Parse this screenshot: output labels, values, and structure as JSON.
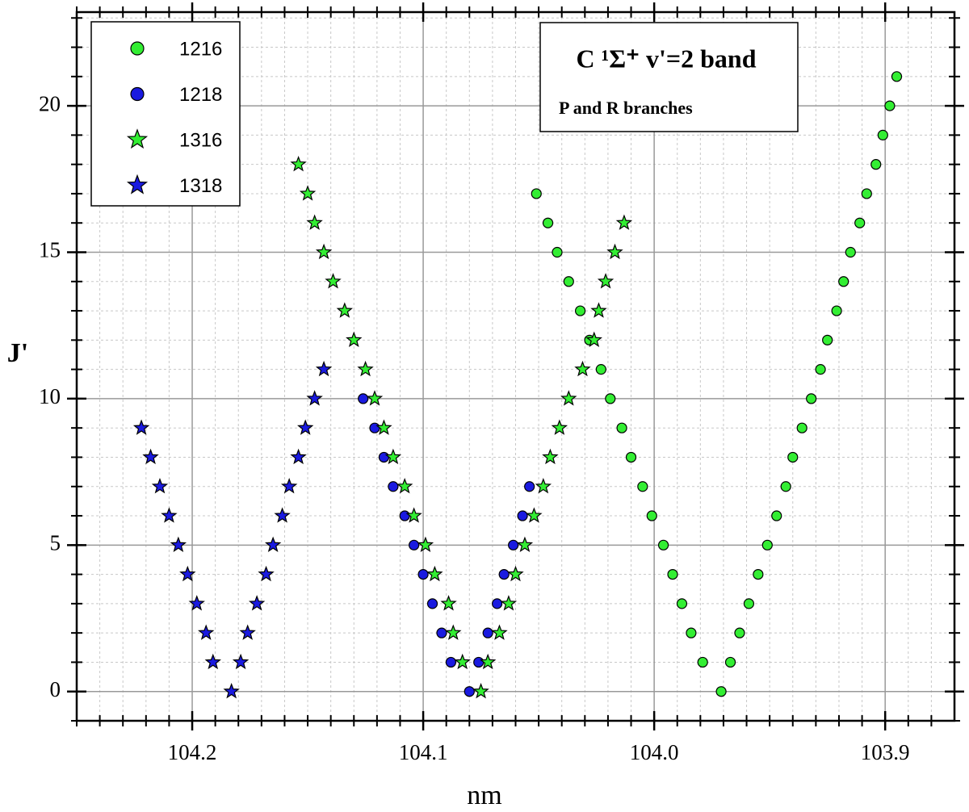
{
  "chart_data": {
    "type": "scatter",
    "annotation": {
      "title": "C ¹Σ⁺ v'=2 band",
      "subtitle": "P and R branches"
    },
    "xlabel": "nm",
    "ylabel": "J'",
    "xlim": [
      104.25,
      103.87
    ],
    "ylim": [
      -1,
      23.2
    ],
    "xticks": [
      104.2,
      104.1,
      {
        "value": 104,
        "label": "104.0"
      },
      103.9
    ],
    "yticks": [
      0,
      5,
      10,
      15,
      20
    ],
    "minor_divisions": {
      "x": 10,
      "y": 5
    },
    "grid": true,
    "minor_grid": true,
    "legend": "upper left",
    "series": [
      {
        "name": "1216",
        "color": "#33ee33",
        "marker": "circle",
        "x": [
          103.971,
          103.967,
          103.963,
          103.959,
          103.955,
          103.951,
          103.947,
          103.943,
          103.94,
          103.936,
          103.932,
          103.928,
          103.925,
          103.921,
          103.918,
          103.915,
          103.911,
          103.908,
          103.904,
          103.901,
          103.898,
          103.895,
          103.979,
          103.984,
          103.988,
          103.992,
          103.996,
          104.001,
          104.005,
          104.01,
          104.014,
          104.019,
          104.023,
          104.028,
          104.032,
          104.037,
          104.042,
          104.046,
          104.051
        ],
        "y": [
          0,
          1,
          2,
          3,
          4,
          5,
          6,
          7,
          8,
          9,
          10,
          11,
          12,
          13,
          14,
          15,
          16,
          17,
          18,
          19,
          20,
          21,
          1,
          2,
          3,
          4,
          5,
          6,
          7,
          8,
          9,
          10,
          11,
          12,
          13,
          14,
          15,
          16,
          17
        ]
      },
      {
        "name": "1218",
        "color": "#1a1ae0",
        "marker": "circle",
        "x": [
          104.08,
          104.076,
          104.072,
          104.068,
          104.065,
          104.061,
          104.057,
          104.054,
          104.088,
          104.092,
          104.096,
          104.1,
          104.104,
          104.108,
          104.113,
          104.117,
          104.121,
          104.126
        ],
        "y": [
          0,
          1,
          2,
          3,
          4,
          5,
          6,
          7,
          1,
          2,
          3,
          4,
          5,
          6,
          7,
          8,
          9,
          10
        ]
      },
      {
        "name": "1316",
        "color": "#33ee33",
        "marker": "star",
        "x": [
          104.075,
          104.072,
          104.067,
          104.063,
          104.06,
          104.056,
          104.052,
          104.048,
          104.045,
          104.041,
          104.037,
          104.031,
          104.026,
          104.024,
          104.021,
          104.017,
          104.013,
          104.083,
          104.087,
          104.089,
          104.095,
          104.099,
          104.104,
          104.108,
          104.113,
          104.117,
          104.121,
          104.125,
          104.13,
          104.134,
          104.139,
          104.143,
          104.147,
          104.15,
          104.154
        ],
        "y": [
          0,
          1,
          2,
          3,
          4,
          5,
          6,
          7,
          8,
          9,
          10,
          11,
          12,
          13,
          14,
          15,
          16,
          1,
          2,
          3,
          4,
          5,
          6,
          7,
          8,
          9,
          10,
          11,
          12,
          13,
          14,
          15,
          16,
          17,
          18
        ]
      },
      {
        "name": "1318",
        "color": "#1a1ae0",
        "marker": "star",
        "x": [
          104.183,
          104.179,
          104.176,
          104.172,
          104.168,
          104.165,
          104.161,
          104.158,
          104.154,
          104.151,
          104.147,
          104.143,
          104.191,
          104.194,
          104.198,
          104.202,
          104.206,
          104.21,
          104.214,
          104.218,
          104.222
        ],
        "y": [
          0,
          1,
          2,
          3,
          4,
          5,
          6,
          7,
          8,
          9,
          10,
          11,
          1,
          2,
          3,
          4,
          5,
          6,
          7,
          8,
          9
        ]
      }
    ]
  }
}
